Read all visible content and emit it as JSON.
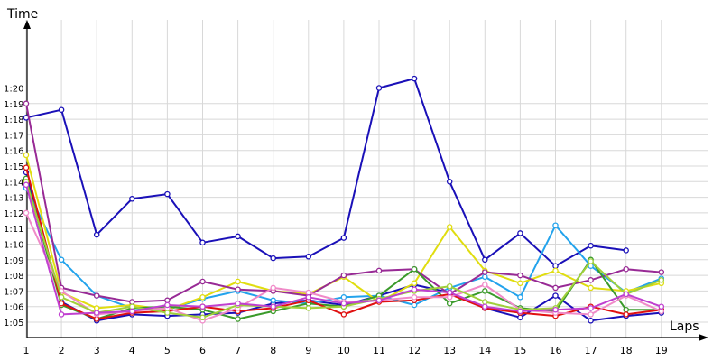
{
  "chart_data": {
    "type": "line",
    "ylabel": "Time",
    "xlabel": "Laps",
    "x": [
      1,
      2,
      3,
      4,
      5,
      6,
      7,
      8,
      9,
      10,
      11,
      12,
      13,
      14,
      15,
      16,
      17,
      18,
      19
    ],
    "xlim": [
      0,
      19.5
    ],
    "ylim": [
      64.2,
      81.5
    ],
    "y_unit": "seconds",
    "y_ticks": [
      {
        "value": 65,
        "label": "1:05"
      },
      {
        "value": 66,
        "label": "1:06"
      },
      {
        "value": 67,
        "label": "1:07"
      },
      {
        "value": 68,
        "label": "1:08"
      },
      {
        "value": 69,
        "label": "1:09"
      },
      {
        "value": 70,
        "label": "1:10"
      },
      {
        "value": 71,
        "label": "1:11"
      },
      {
        "value": 72,
        "label": "1:12"
      },
      {
        "value": 73,
        "label": "1:13"
      },
      {
        "value": 74,
        "label": "1:14"
      },
      {
        "value": 75,
        "label": "1:15"
      },
      {
        "value": 76,
        "label": "1:16"
      },
      {
        "value": 77,
        "label": "1:17"
      },
      {
        "value": 78,
        "label": "1:18"
      },
      {
        "value": 79,
        "label": "1:19"
      },
      {
        "value": 80,
        "label": "1:20"
      }
    ],
    "x_ticks": [
      "1",
      "2",
      "3",
      "4",
      "5",
      "6",
      "7",
      "8",
      "9",
      "10",
      "11",
      "12",
      "13",
      "14",
      "15",
      "16",
      "17",
      "18",
      "19"
    ],
    "grid": true,
    "legend": "none",
    "series": [
      {
        "color": "#1a10b8",
        "values": [
          78.1,
          78.6,
          70.6,
          72.9,
          73.2,
          70.1,
          70.5,
          69.1,
          69.2,
          70.4,
          80.0,
          80.6,
          74.0,
          69.0,
          70.7,
          68.6,
          69.9,
          69.6,
          null
        ]
      },
      {
        "color": "#1a10b8",
        "values": [
          74.6,
          66.3,
          65.1,
          65.5,
          65.4,
          65.5,
          65.6,
          66.2,
          66.4,
          66.1,
          66.7,
          67.4,
          66.9,
          65.9,
          65.3,
          66.7,
          65.1,
          65.4,
          65.6
        ]
      },
      {
        "color": "#23a3ec",
        "values": [
          73.6,
          69.0,
          66.7,
          65.9,
          65.8,
          66.5,
          67.0,
          66.4,
          66.2,
          66.6,
          66.7,
          66.1,
          67.2,
          67.9,
          66.6,
          71.2,
          68.6,
          66.9,
          67.8
        ]
      },
      {
        "color": "#e0dd10",
        "values": [
          75.7,
          66.9,
          65.9,
          66.1,
          65.8,
          66.6,
          67.6,
          67.0,
          66.8,
          67.9,
          66.3,
          67.5,
          71.1,
          68.3,
          67.5,
          68.3,
          67.2,
          67.0,
          67.5
        ]
      },
      {
        "color": "#982a95",
        "values": [
          79.0,
          67.2,
          66.7,
          66.3,
          66.4,
          67.6,
          67.1,
          67.0,
          66.7,
          68.0,
          68.3,
          68.4,
          66.8,
          68.2,
          68.0,
          67.2,
          67.7,
          68.4,
          68.2
        ]
      },
      {
        "color": "#3a9a2a",
        "values": [
          74.2,
          66.1,
          65.2,
          65.9,
          66.0,
          65.8,
          65.2,
          65.7,
          66.2,
          66.0,
          66.7,
          68.4,
          66.2,
          67.0,
          65.9,
          65.7,
          69.0,
          65.8,
          65.8
        ]
      },
      {
        "color": "#e01010",
        "values": [
          74.9,
          66.2,
          65.2,
          65.6,
          65.7,
          66.0,
          65.7,
          65.9,
          66.4,
          65.5,
          66.3,
          66.4,
          66.8,
          65.9,
          65.6,
          65.4,
          66.0,
          65.5,
          65.8
        ]
      },
      {
        "color": "#f08ac8",
        "values": [
          72.0,
          67.0,
          65.5,
          65.7,
          65.9,
          65.1,
          65.9,
          67.2,
          66.9,
          66.3,
          66.4,
          66.6,
          66.6,
          67.4,
          65.8,
          65.6,
          65.5,
          66.7,
          65.7
        ]
      },
      {
        "color": "#a0d03a",
        "values": [
          74.0,
          66.6,
          65.6,
          66.0,
          65.6,
          65.3,
          66.1,
          66.0,
          65.9,
          66.0,
          66.5,
          67.0,
          67.3,
          66.3,
          65.8,
          65.9,
          68.9,
          66.8,
          67.7
        ]
      },
      {
        "color": "#c040d0",
        "values": [
          73.8,
          65.5,
          65.6,
          65.7,
          66.1,
          66.0,
          66.2,
          66.0,
          66.6,
          66.2,
          66.4,
          67.1,
          66.9,
          66.0,
          65.7,
          65.8,
          65.9,
          66.8,
          66.0
        ]
      }
    ]
  }
}
